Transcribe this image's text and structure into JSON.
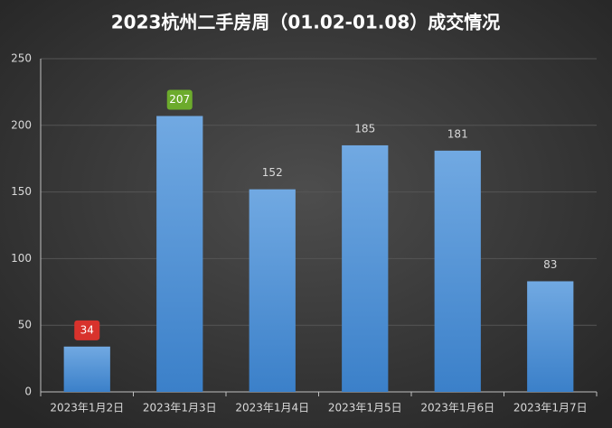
{
  "chart_data": {
    "type": "bar",
    "title": "2023杭州二手房周（01.02-01.08）成交情况",
    "categories": [
      "2023年1月2日",
      "2023年1月3日",
      "2023年1月4日",
      "2023年1月5日",
      "2023年1月6日",
      "2023年1月7日"
    ],
    "values": [
      34,
      207,
      152,
      185,
      181,
      83
    ],
    "color": "#5b9bd5",
    "ylim": [
      0,
      250
    ],
    "yticks": [
      0,
      50,
      100,
      150,
      200,
      250
    ],
    "grid": true,
    "min_label_color": "#d8322c",
    "max_label_color": "#6cab2c"
  }
}
